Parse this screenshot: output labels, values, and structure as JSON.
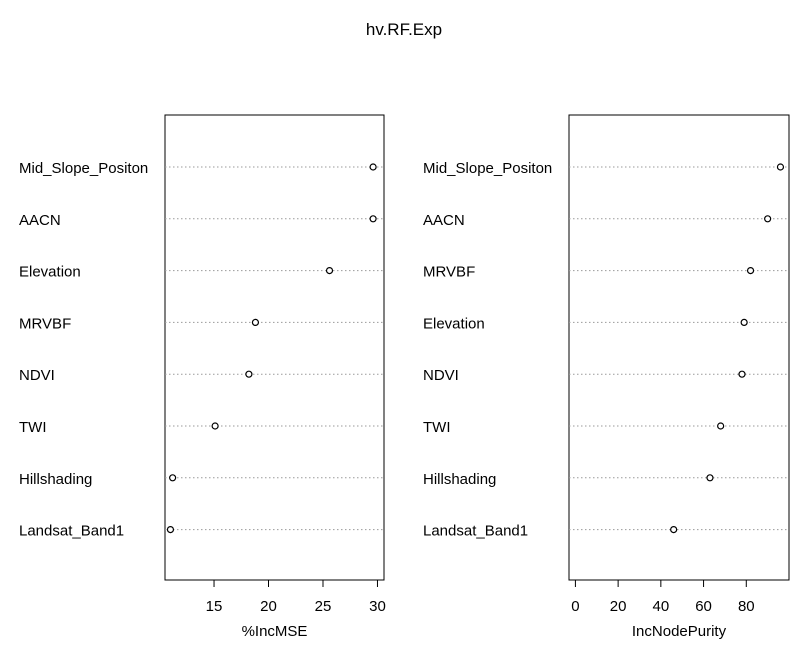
{
  "title": "hv.RF.Exp",
  "chart_data": [
    {
      "type": "scatter",
      "style": "dotchart",
      "xlabel": "%IncMSE",
      "ylabel": "",
      "xlim": [
        10.5,
        30.6
      ],
      "xticks": [
        15,
        20,
        25,
        30
      ],
      "grid": "dotted horizontal lines",
      "categories": [
        "Mid_Slope_Positon",
        "AACN",
        "Elevation",
        "MRVBF",
        "NDVI",
        "TWI",
        "Hillshading",
        "Landsat_Band1"
      ],
      "values": [
        29.6,
        29.6,
        25.6,
        18.8,
        18.2,
        15.1,
        11.2,
        11.0
      ]
    },
    {
      "type": "scatter",
      "style": "dotchart",
      "xlabel": "IncNodePurity",
      "ylabel": "",
      "xlim": [
        -3,
        100
      ],
      "xticks": [
        0,
        20,
        40,
        60,
        80
      ],
      "grid": "dotted horizontal lines",
      "categories": [
        "Mid_Slope_Positon",
        "AACN",
        "MRVBF",
        "Elevation",
        "NDVI",
        "TWI",
        "Hillshading",
        "Landsat_Band1"
      ],
      "values": [
        96,
        90,
        82,
        79,
        78,
        68,
        63,
        46
      ]
    }
  ]
}
